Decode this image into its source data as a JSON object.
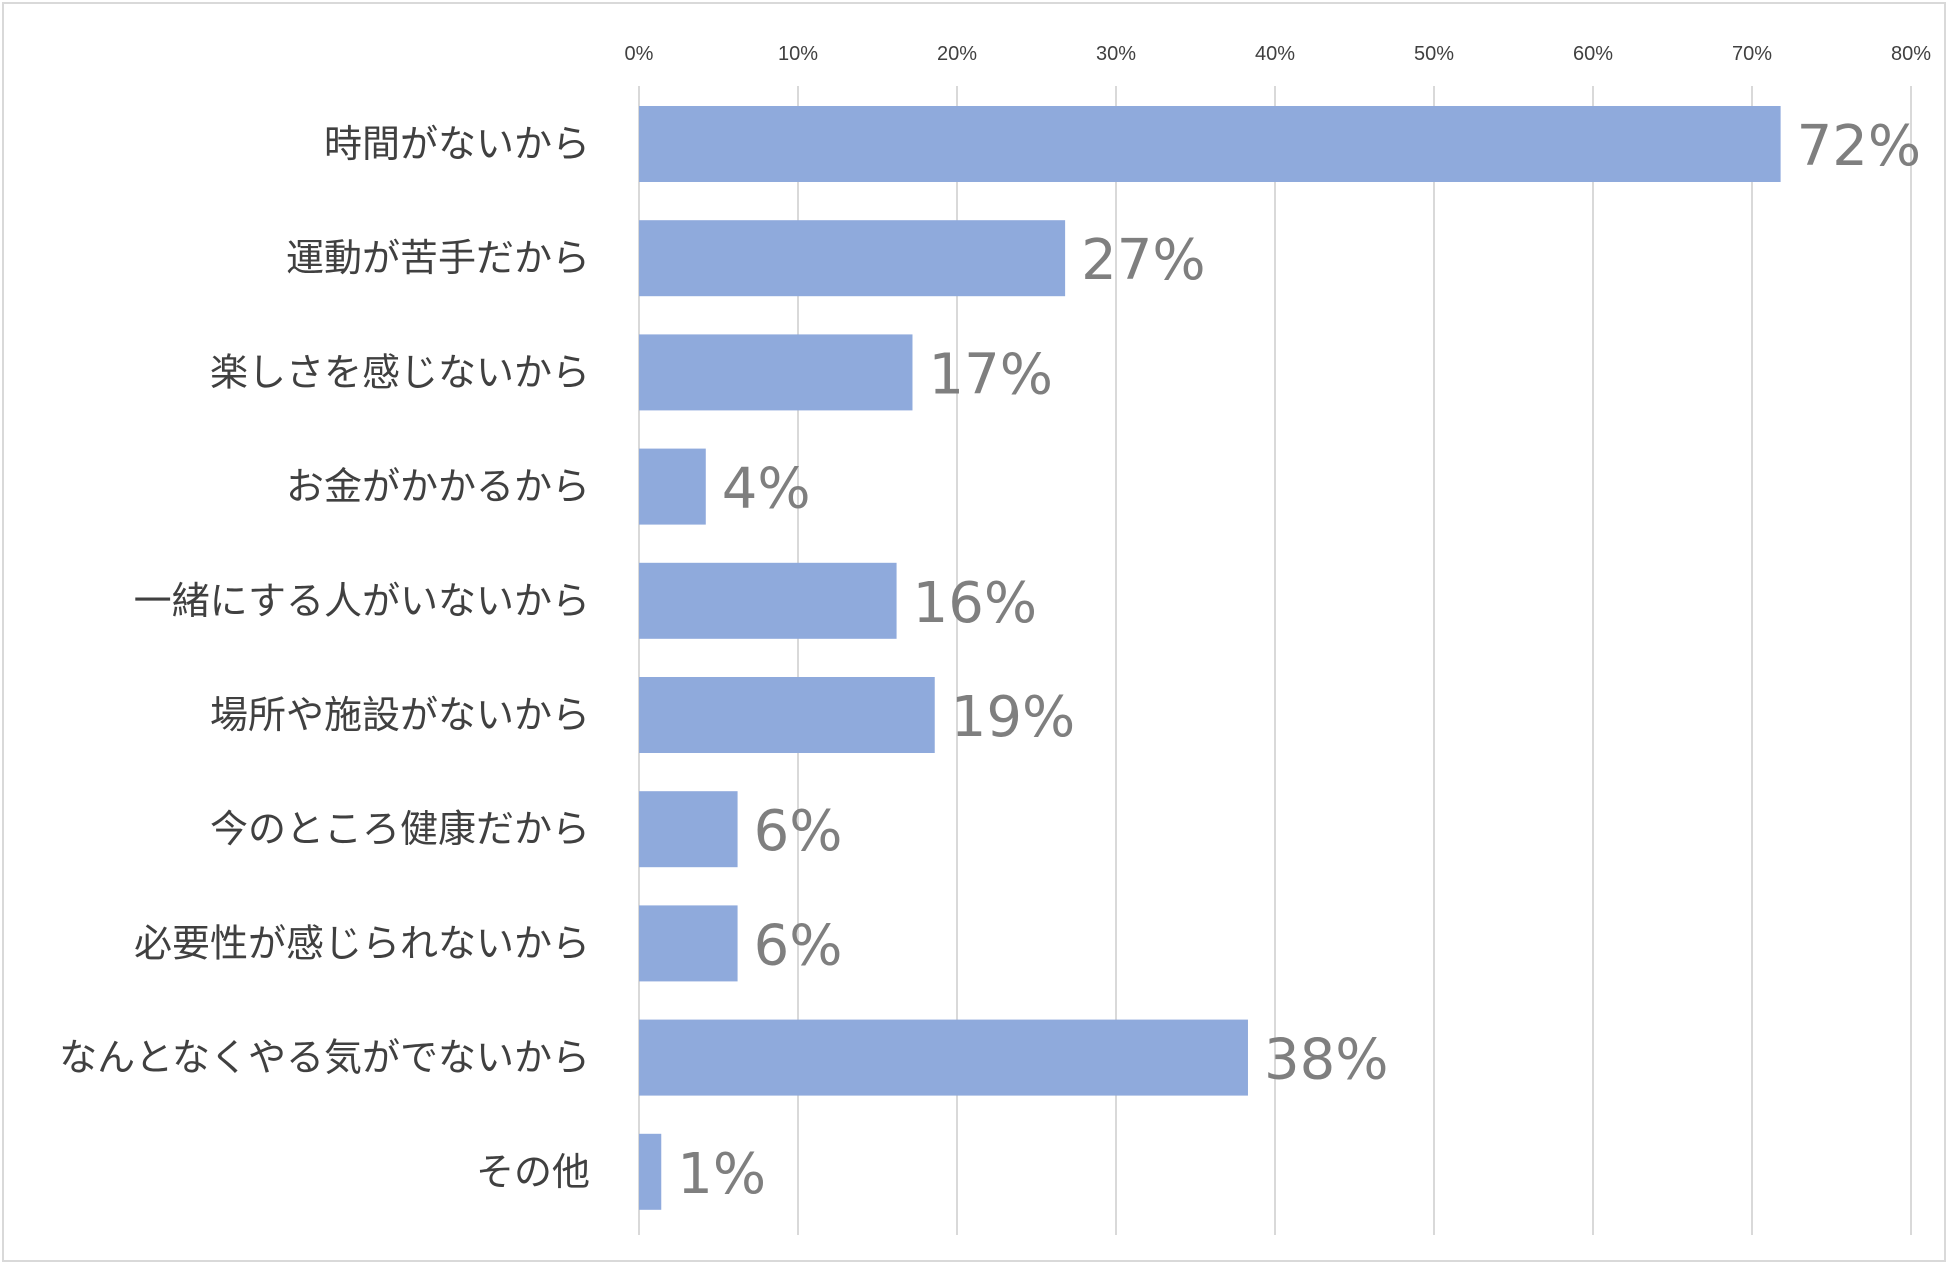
{
  "chart_data": {
    "type": "bar",
    "orientation": "horizontal",
    "categories": [
      "時間がないから",
      "運動が苦手だから",
      "楽しさを感じないから",
      "お金がかかるから",
      "一緒にする人がいないから",
      "場所や施設がないから",
      "今のところ健康だから",
      "必要性が感じられないから",
      "なんとなくやる気がでないから",
      "その他"
    ],
    "values": [
      71.8,
      26.8,
      17.2,
      4.2,
      16.2,
      18.6,
      6.2,
      6.2,
      38.3,
      1.4
    ],
    "value_labels": [
      "72%",
      "27%",
      "17%",
      "4%",
      "16%",
      "19%",
      "6%",
      "6%",
      "38%",
      "1%"
    ],
    "x_ticks": [
      "0%",
      "10%",
      "20%",
      "30%",
      "40%",
      "50%",
      "60%",
      "70%",
      "80%"
    ],
    "xlim": [
      0,
      80
    ],
    "x_axis_position": "top",
    "grid": true,
    "bar_color": "#8faadc",
    "grid_color": "#d9d9d9",
    "title": "",
    "xlabel": "",
    "ylabel": ""
  }
}
